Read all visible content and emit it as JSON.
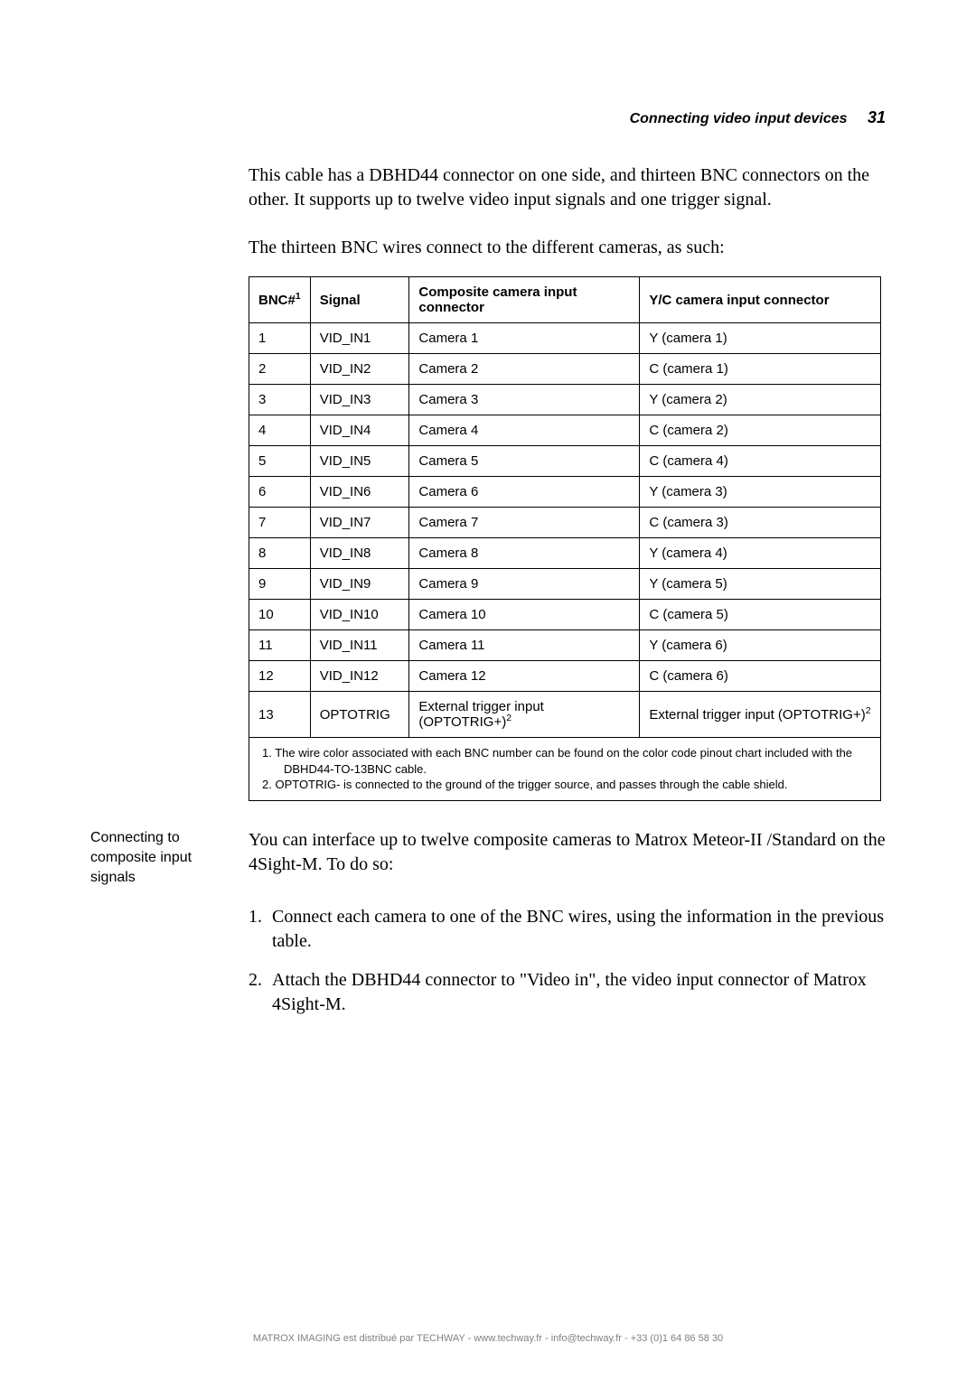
{
  "header": {
    "section_title": "Connecting video input devices",
    "page_number": "31"
  },
  "intro_p1": "This cable has a DBHD44 connector on one side, and thirteen BNC connectors on the other. It supports up to twelve video input signals and one trigger signal.",
  "intro_p2": "The thirteen BNC wires connect to the different cameras, as such:",
  "table": {
    "headers": {
      "h1": "BNC#",
      "h1_sup": "1",
      "h2": "Signal",
      "h3": "Composite camera input connector",
      "h4": "Y/C camera input connector"
    },
    "rows": [
      {
        "n": "1",
        "sig": "VID_IN1",
        "comp": "Camera 1",
        "yc": "Y (camera 1)"
      },
      {
        "n": "2",
        "sig": "VID_IN2",
        "comp": "Camera 2",
        "yc": "C (camera 1)"
      },
      {
        "n": "3",
        "sig": "VID_IN3",
        "comp": "Camera 3",
        "yc": "Y (camera 2)"
      },
      {
        "n": "4",
        "sig": "VID_IN4",
        "comp": "Camera 4",
        "yc": "C (camera 2)"
      },
      {
        "n": "5",
        "sig": "VID_IN5",
        "comp": "Camera 5",
        "yc": "C (camera 4)"
      },
      {
        "n": "6",
        "sig": "VID_IN6",
        "comp": "Camera 6",
        "yc": "Y (camera 3)"
      },
      {
        "n": "7",
        "sig": "VID_IN7",
        "comp": "Camera 7",
        "yc": "C (camera 3)"
      },
      {
        "n": "8",
        "sig": "VID_IN8",
        "comp": "Camera 8",
        "yc": "Y (camera 4)"
      },
      {
        "n": "9",
        "sig": "VID_IN9",
        "comp": "Camera 9",
        "yc": "Y (camera 5)"
      },
      {
        "n": "10",
        "sig": "VID_IN10",
        "comp": "Camera 10",
        "yc": "C (camera 5)"
      },
      {
        "n": "11",
        "sig": "VID_IN11",
        "comp": "Camera 11",
        "yc": "Y (camera 6)"
      },
      {
        "n": "12",
        "sig": "VID_IN12",
        "comp": "Camera 12",
        "yc": "C (camera 6)"
      }
    ],
    "row13": {
      "n": "13",
      "sig": "OPTOTRIG",
      "comp_prefix": "External trigger input (OPTOTRIG+)",
      "comp_sup": "2",
      "yc_prefix": "External trigger input (OPTOTRIG+)",
      "yc_sup": "2"
    }
  },
  "footnotes": {
    "fn1_a": "1. The wire color associated with each BNC number can be found on the color code pinout chart included with the",
    "fn1_b": "DBHD44-TO-13BNC cable.",
    "fn2": "2. OPTOTRIG- is connected to the ground of the trigger source, and passes through the cable shield."
  },
  "side_heading": "Connecting to composite input signals",
  "body_intro": "You can interface up to twelve composite cameras to Matrox Meteor-II /Standard on the 4Sight-M. To do so:",
  "steps": {
    "s1_num": "1.",
    "s1": "Connect each camera to one of the BNC wires, using the information in the previous table.",
    "s2_num": "2.",
    "s2": "Attach the DBHD44 connector to \"Video in\", the video input connector of Matrox 4Sight-M."
  },
  "footer": "MATROX IMAGING est distribué par TECHWAY - www.techway.fr - info@techway.fr - +33 (0)1 64 86 58 30",
  "colors": {
    "text": "#000000",
    "background": "#ffffff",
    "border": "#000000",
    "footer": "#808080"
  },
  "typography": {
    "serif_body_pt": 20,
    "sans_table_pt": 15,
    "sans_heading_pt": 16,
    "footnote_pt": 13,
    "footer_pt": 11
  }
}
